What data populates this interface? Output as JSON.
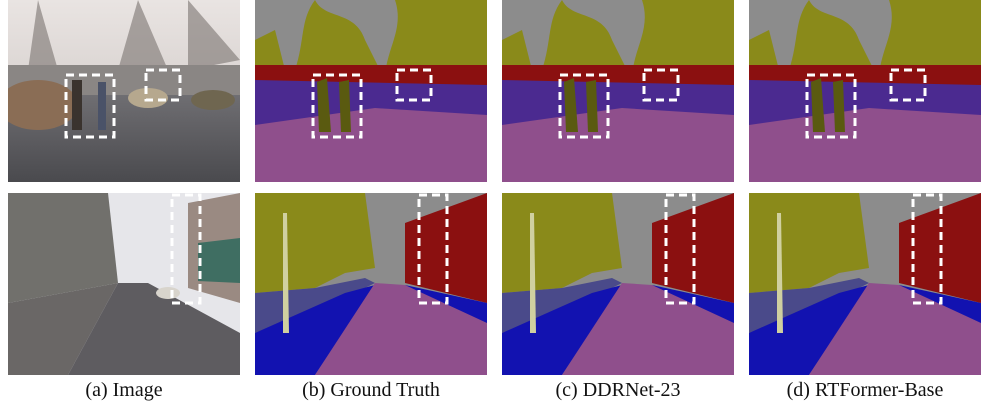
{
  "panels": [
    {
      "caption": "(a) Image"
    },
    {
      "caption": "(b) Ground Truth"
    },
    {
      "caption": "(c) DDRNet-23"
    },
    {
      "caption": "(d) RTFormer-Base"
    }
  ]
}
